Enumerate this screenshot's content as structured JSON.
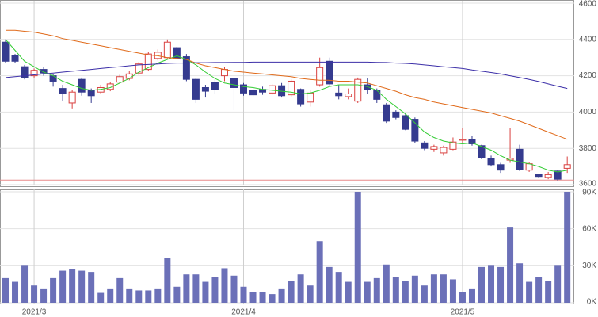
{
  "chart_data": [
    {
      "type": "candlestick",
      "ylim": [
        3600,
        4600
      ],
      "yticks": [
        3600,
        3800,
        4000,
        4200,
        4400,
        4600
      ],
      "grid": true,
      "up_color": "#d9403f",
      "down_color": "#353b8f",
      "open": [
        4385,
        4310,
        4250,
        4200,
        4235,
        4200,
        4130,
        4050,
        4180,
        4120,
        4110,
        4125,
        4165,
        4185,
        4215,
        4235,
        4295,
        4300,
        4355,
        4305,
        4180,
        4135,
        4165,
        4200,
        4185,
        4150,
        4120,
        4125,
        4105,
        4145,
        4095,
        4125,
        4055,
        4150,
        4280,
        4105,
        4085,
        4060,
        4150,
        4120,
        4040,
        4000,
        3980,
        3960,
        3830,
        3795,
        3775,
        3795,
        3845,
        3850,
        3815,
        3745,
        3710,
        3735,
        3795,
        3680,
        3655,
        3640,
        3675,
        3690
      ],
      "high": [
        4400,
        4320,
        4260,
        4240,
        4250,
        4210,
        4150,
        4120,
        4190,
        4130,
        4150,
        4165,
        4205,
        4225,
        4275,
        4330,
        4345,
        4400,
        4360,
        4320,
        4185,
        4150,
        4190,
        4250,
        4190,
        4160,
        4130,
        4140,
        4155,
        4160,
        4180,
        4130,
        4120,
        4300,
        4300,
        4150,
        4130,
        4190,
        4185,
        4130,
        4050,
        4010,
        3990,
        3970,
        3840,
        3820,
        3815,
        3860,
        3910,
        3870,
        3820,
        3760,
        3720,
        3910,
        3820,
        3725,
        3660,
        3670,
        3680,
        3755
      ],
      "low": [
        4270,
        4270,
        4180,
        4190,
        4200,
        4140,
        4060,
        4020,
        4090,
        4050,
        4100,
        4115,
        4160,
        4175,
        4205,
        4225,
        4285,
        4295,
        4290,
        4170,
        4050,
        4080,
        4100,
        4170,
        4010,
        4090,
        4085,
        4095,
        4095,
        4080,
        4085,
        4030,
        4030,
        4140,
        4140,
        4070,
        4070,
        4050,
        4100,
        4050,
        3940,
        3960,
        3900,
        3830,
        3790,
        3780,
        3760,
        3790,
        3830,
        3815,
        3740,
        3700,
        3665,
        3720,
        3675,
        3670,
        3640,
        3630,
        3620,
        3665
      ],
      "close": [
        4280,
        4280,
        4190,
        4230,
        4215,
        4170,
        4100,
        4110,
        4110,
        4090,
        4135,
        4155,
        4195,
        4210,
        4265,
        4320,
        4330,
        4385,
        4295,
        4180,
        4070,
        4115,
        4125,
        4235,
        4135,
        4105,
        4095,
        4110,
        4145,
        4090,
        4170,
        4045,
        4105,
        4245,
        4155,
        4090,
        4100,
        4180,
        4125,
        4070,
        3950,
        3970,
        3905,
        3840,
        3800,
        3810,
        3805,
        3835,
        3850,
        3825,
        3750,
        3710,
        3680,
        3745,
        3685,
        3715,
        3645,
        3655,
        3630,
        3710
      ],
      "series": [
        {
          "color": "#33cc33",
          "values": [
            4400,
            4340,
            4280,
            4250,
            4220,
            4200,
            4170,
            4150,
            4130,
            4120,
            4125,
            4135,
            4160,
            4185,
            4220,
            4245,
            4270,
            4290,
            4310,
            4290,
            4260,
            4220,
            4185,
            4160,
            4150,
            4140,
            4135,
            4125,
            4120,
            4115,
            4110,
            4100,
            4105,
            4120,
            4140,
            4150,
            4150,
            4150,
            4140,
            4120,
            4070,
            4030,
            3990,
            3940,
            3890,
            3860,
            3840,
            3830,
            3825,
            3830,
            3810,
            3790,
            3760,
            3735,
            3725,
            3715,
            3700,
            3680,
            3670,
            3680
          ]
        },
        {
          "color": "#e06a1a",
          "values": [
            4450,
            4450,
            4445,
            4440,
            4430,
            4420,
            4405,
            4395,
            4385,
            4375,
            4365,
            4355,
            4345,
            4335,
            4325,
            4315,
            4310,
            4300,
            4295,
            4290,
            4270,
            4255,
            4245,
            4235,
            4225,
            4220,
            4215,
            4210,
            4205,
            4200,
            4195,
            4185,
            4180,
            4175,
            4175,
            4170,
            4170,
            4165,
            4160,
            4145,
            4130,
            4115,
            4095,
            4080,
            4070,
            4055,
            4045,
            4035,
            4025,
            4015,
            4005,
            3995,
            3980,
            3965,
            3950,
            3930,
            3910,
            3890,
            3870,
            3850
          ]
        },
        {
          "color": "#3c2fa8",
          "values": [
            4190,
            4195,
            4200,
            4205,
            4210,
            4215,
            4220,
            4225,
            4230,
            4235,
            4240,
            4245,
            4250,
            4255,
            4260,
            4262,
            4265,
            4268,
            4270,
            4270,
            4272,
            4272,
            4273,
            4273,
            4274,
            4274,
            4275,
            4275,
            4275,
            4275,
            4275,
            4275,
            4275,
            4275,
            4275,
            4275,
            4275,
            4275,
            4275,
            4274,
            4273,
            4270,
            4268,
            4265,
            4260,
            4255,
            4250,
            4245,
            4240,
            4232,
            4225,
            4218,
            4210,
            4200,
            4190,
            4180,
            4168,
            4155,
            4142,
            4130
          ]
        }
      ],
      "reference_line": {
        "value": 3625,
        "color": "#e88a8a"
      }
    },
    {
      "type": "bar",
      "color": "#6b70b8",
      "ylim": [
        0,
        90000
      ],
      "yticks": [
        {
          "value": 0,
          "label": "0K"
        },
        {
          "value": 30000,
          "label": "30K"
        },
        {
          "value": 60000,
          "label": "60K"
        },
        {
          "value": 90000,
          "label": "90K"
        }
      ],
      "grid": true,
      "categories": [
        null,
        null,
        null,
        "2021/3",
        null,
        null,
        null,
        null,
        null,
        null,
        null,
        null,
        null,
        null,
        null,
        null,
        null,
        null,
        null,
        null,
        null,
        null,
        null,
        null,
        null,
        "2021/4",
        null,
        null,
        null,
        null,
        null,
        null,
        null,
        null,
        null,
        null,
        null,
        null,
        null,
        null,
        null,
        null,
        null,
        null,
        null,
        null,
        null,
        null,
        "2021/5",
        null,
        null,
        null,
        null,
        null,
        null,
        null,
        null,
        null,
        null,
        null
      ],
      "values": [
        20000,
        17000,
        30000,
        14000,
        11000,
        20000,
        26000,
        27000,
        26000,
        25000,
        8000,
        11000,
        20000,
        11000,
        10000,
        10000,
        11000,
        36000,
        13000,
        23000,
        23000,
        17000,
        21000,
        28000,
        22000,
        13000,
        9000,
        9000,
        7000,
        11000,
        18000,
        23000,
        14000,
        50000,
        29000,
        25000,
        17000,
        90000,
        17000,
        20000,
        31000,
        21000,
        18000,
        22000,
        14000,
        23000,
        23000,
        19000,
        9000,
        11000,
        29000,
        30000,
        29000,
        61000,
        32000,
        17000,
        21000,
        18000,
        30000,
        90000
      ]
    }
  ]
}
